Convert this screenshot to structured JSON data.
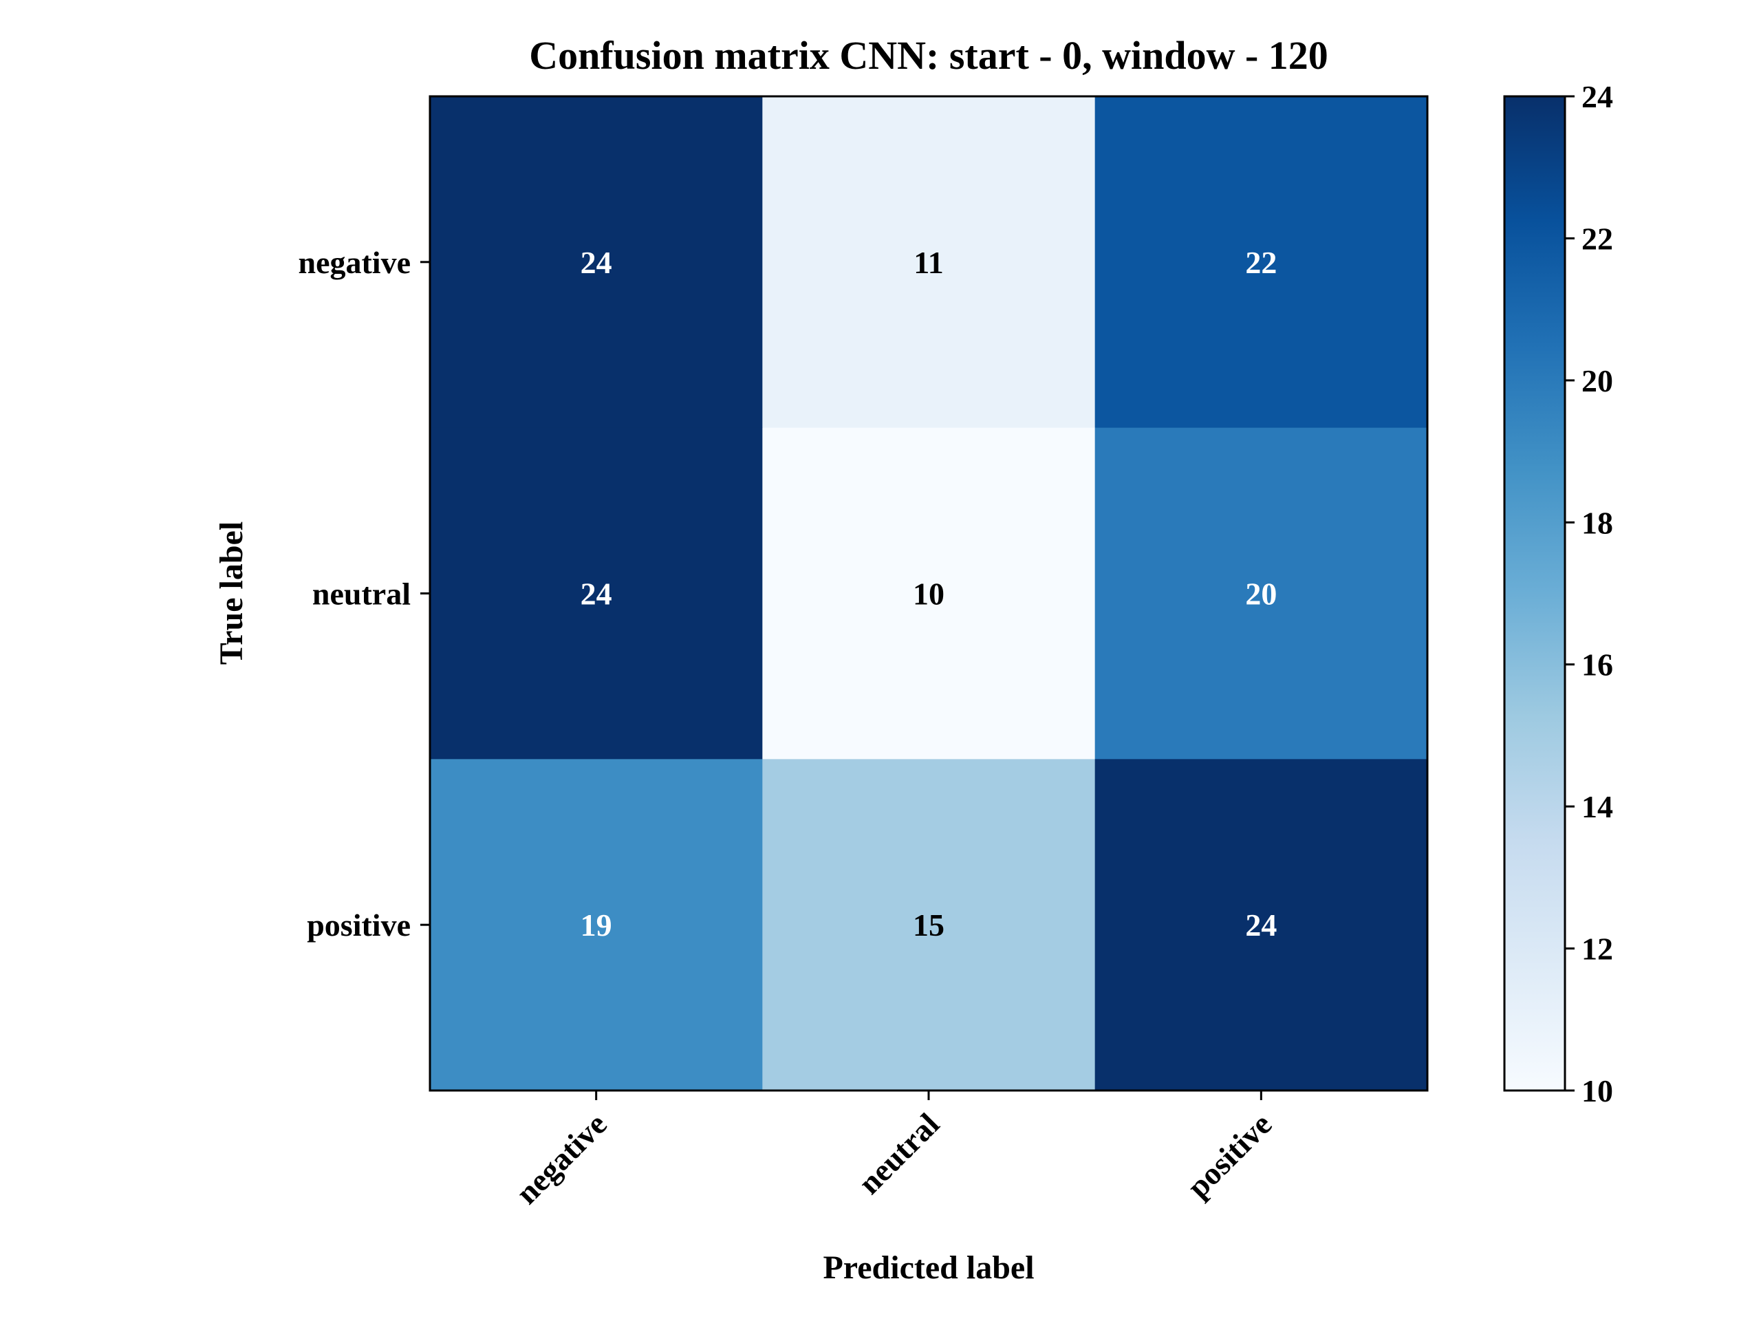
{
  "chart_data": {
    "type": "heatmap",
    "title": "Confusion matrix CNN: start - 0, window - 120",
    "xlabel": "Predicted label",
    "ylabel": "True label",
    "x_categories": [
      "negative",
      "neutral",
      "positive"
    ],
    "y_categories": [
      "negative",
      "neutral",
      "positive"
    ],
    "values": [
      [
        24,
        11,
        22
      ],
      [
        24,
        10,
        20
      ],
      [
        19,
        15,
        24
      ]
    ],
    "colorbar": {
      "range": [
        10,
        24
      ],
      "ticks": [
        10,
        12,
        14,
        16,
        18,
        20,
        22,
        24
      ],
      "colormap": "Blues"
    },
    "colors": {
      "text_dark": "#000000",
      "text_light": "#ffffff"
    }
  }
}
